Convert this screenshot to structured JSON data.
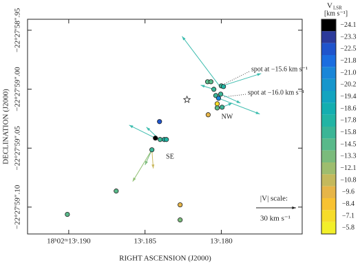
{
  "chart_data": {
    "type": "scatter",
    "xlabel": "RIGHT ASCENSION (J2000)",
    "ylabel": "DECLINATION (J2000)",
    "xlim": [
      13.1927,
      13.1747
    ],
    "xticks": [
      {
        "value": 13.19,
        "label": "18ʰ02ᵐ13ˢ.190"
      },
      {
        "value": 13.185,
        "label": "13ˢ.185"
      },
      {
        "value": 13.18,
        "label": "13ˢ.180"
      }
    ],
    "ylim": [
      59.1228,
      58.9407
    ],
    "yticks": [
      {
        "value": 58.95,
        "label": "−22°27′58″.95"
      },
      {
        "value": 59.0,
        "label": "−22°27′59″.00"
      },
      {
        "value": 59.05,
        "label": "−22°27′59″.05"
      },
      {
        "value": 59.1,
        "label": "−22°27′59″.10"
      }
    ],
    "spots": {
      "x": [
        13.19009,
        13.18689,
        13.1827,
        13.1827,
        13.18405,
        13.18432,
        13.18401,
        13.18374,
        13.1836,
        13.18455,
        13.18086,
        13.1809,
        13.18068,
        13.18049,
        13.18,
        13.17986,
        13.18004,
        13.18036,
        13.18018,
        13.18027,
        13.18027,
        13.17995
      ],
      "y": [
        59.1062,
        59.0864,
        59.0981,
        59.1109,
        59.0275,
        59.0415,
        59.0427,
        59.0427,
        59.0427,
        59.0514,
        59.0217,
        58.9937,
        58.9937,
        59.0001,
        58.9972,
        58.9978,
        59.0042,
        59.0054,
        59.0077,
        59.0124,
        59.0159,
        59.0153
      ],
      "velocity": [
        -14.5,
        -14.5,
        -9.6,
        -13.3,
        -22.5,
        -24.1,
        -15.8,
        -17.8,
        -17.8,
        -15.8,
        -9.6,
        -14.5,
        -14.5,
        -15.8,
        -15.8,
        -17.8,
        -15.8,
        -15.8,
        -21.0,
        -7.1,
        -14.5,
        -15.8
      ]
    },
    "arrows": [
      {
        "x": [
          13.18009,
          13.18257
        ],
        "y": [
          58.9978,
          58.9552
        ],
        "color": "#3cbcae"
      },
      {
        "x": [
          13.18009,
          13.17739
        ],
        "y": [
          58.9978,
          58.9867
        ],
        "color": "#3cbcae"
      },
      {
        "x": [
          13.18018,
          13.17748
        ],
        "y": [
          59.0077,
          59.0211
        ],
        "color": "#3cbcae"
      },
      {
        "x": [
          13.18004,
          13.17874
        ],
        "y": [
          59.0042,
          59.0118
        ],
        "color": "#3cbcae"
      },
      {
        "x": [
          13.18049,
          13.18135
        ],
        "y": [
          59.0001,
          58.9966
        ],
        "color": "#3cbcae"
      },
      {
        "x": [
          13.17995,
          13.17928
        ],
        "y": [
          59.0153,
          59.0118
        ],
        "color": "#3cbcae"
      },
      {
        "x": [
          13.18432,
          13.18604
        ],
        "y": [
          59.0415,
          59.0305
        ],
        "color": "#3cbcae"
      },
      {
        "x": [
          13.18405,
          13.18491
        ],
        "y": [
          59.0427,
          59.0322
        ],
        "color": "#3cbcae"
      },
      {
        "x": [
          13.18455,
          13.18581
        ],
        "y": [
          59.0514,
          59.0783
        ],
        "color": "#8fbf72"
      },
      {
        "x": [
          13.18455,
          13.18446
        ],
        "y": [
          59.0514,
          59.0672
        ],
        "color": "#c9b85c"
      },
      {
        "x": [
          13.18455,
          13.185
        ],
        "y": [
          59.0514,
          59.0643
        ],
        "color": "#7bbb7c"
      }
    ],
    "reference_marker": {
      "x": 13.18225,
      "y": 59.0089
    },
    "annotations": [
      "spot at −15.6 km s⁻¹",
      "spot at −16.0 km s⁻¹",
      "NW",
      "SE"
    ],
    "scale_bar": {
      "label": "|V| scale:",
      "value": 30,
      "text": "30 km s⁻¹"
    },
    "colorbar": {
      "title": "V",
      "title_sub": "LSR",
      "unit": "[km s⁻¹]",
      "ticks": [
        {
          "value": -24.1,
          "label": "−24.1"
        },
        {
          "value": -23.3,
          "label": "−23.3"
        },
        {
          "value": -22.5,
          "label": "−22.5"
        },
        {
          "value": -21.8,
          "label": "−21.8"
        },
        {
          "value": -21.0,
          "label": "−21.0"
        },
        {
          "value": -20.2,
          "label": "−20.2"
        },
        {
          "value": -19.4,
          "label": "−19.4"
        },
        {
          "value": -18.6,
          "label": "−18.6"
        },
        {
          "value": -17.8,
          "label": "−17.8"
        },
        {
          "value": -15.8,
          "label": "−15.8"
        },
        {
          "value": -14.5,
          "label": "−14.5"
        },
        {
          "value": -13.3,
          "label": "−13.3"
        },
        {
          "value": -12.1,
          "label": "−12.1"
        },
        {
          "value": -10.8,
          "label": "−10.8"
        },
        {
          "value": -9.6,
          "label": "−9.6"
        },
        {
          "value": -8.4,
          "label": "−8.4"
        },
        {
          "value": -7.1,
          "label": "−7.1"
        },
        {
          "value": -5.8,
          "label": "−5.8"
        }
      ],
      "colors": [
        "#000000",
        "#2c3a9a",
        "#1f54cc",
        "#1a6de0",
        "#1a86d8",
        "#1696cc",
        "#13a4c0",
        "#14aeb0",
        "#22b4a4",
        "#3bb596",
        "#59b98a",
        "#7bbb7c",
        "#9ebd6e",
        "#c4b95c",
        "#e6b548",
        "#f8c232",
        "#f6dc2a",
        "#f2ef2a"
      ]
    }
  }
}
